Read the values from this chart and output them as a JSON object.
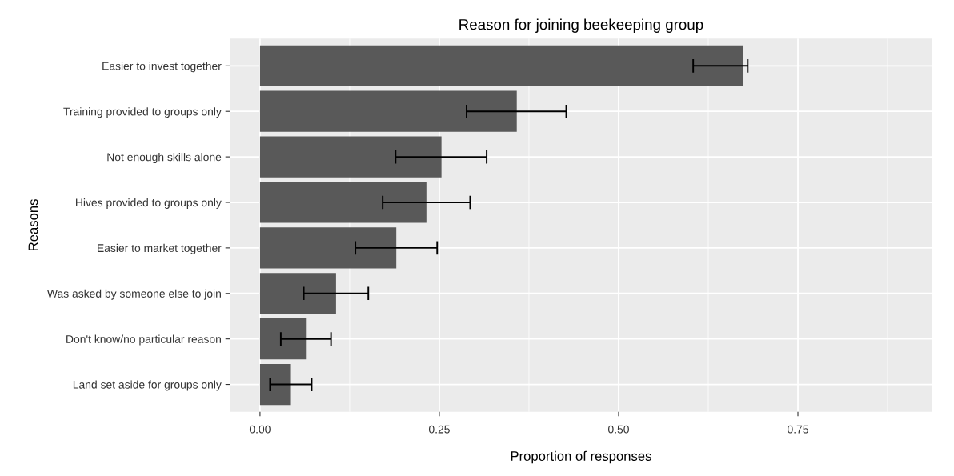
{
  "chart_data": {
    "type": "bar",
    "orientation": "horizontal",
    "title": "Reason for joining beekeeping group",
    "xlabel": "Proportion of responses",
    "ylabel": "Reasons",
    "categories": [
      "Easier to invest together",
      "Training provided to groups only",
      "Not enough skills alone",
      "Hives provided to groups only",
      "Easier to market together",
      "Was asked by someone else to join",
      "Don't know/no particular reason",
      "Land set aside for groups only"
    ],
    "values": [
      0.673,
      0.358,
      0.253,
      0.232,
      0.19,
      0.106,
      0.064,
      0.042
    ],
    "errors": [
      [
        0.604,
        0.68
      ],
      [
        0.288,
        0.427
      ],
      [
        0.189,
        0.316
      ],
      [
        0.171,
        0.293
      ],
      [
        0.133,
        0.247
      ],
      [
        0.061,
        0.151
      ],
      [
        0.029,
        0.099
      ],
      [
        0.014,
        0.072
      ]
    ],
    "color": "#595959",
    "xlim": [
      -0.042,
      0.937
    ],
    "xticks": [
      {
        "value": 0,
        "label": "0.00"
      },
      {
        "value": 0.25,
        "label": "0.25"
      },
      {
        "value": 0.5,
        "label": "0.50"
      },
      {
        "value": 0.75,
        "label": "0.75"
      }
    ],
    "grid": true
  }
}
